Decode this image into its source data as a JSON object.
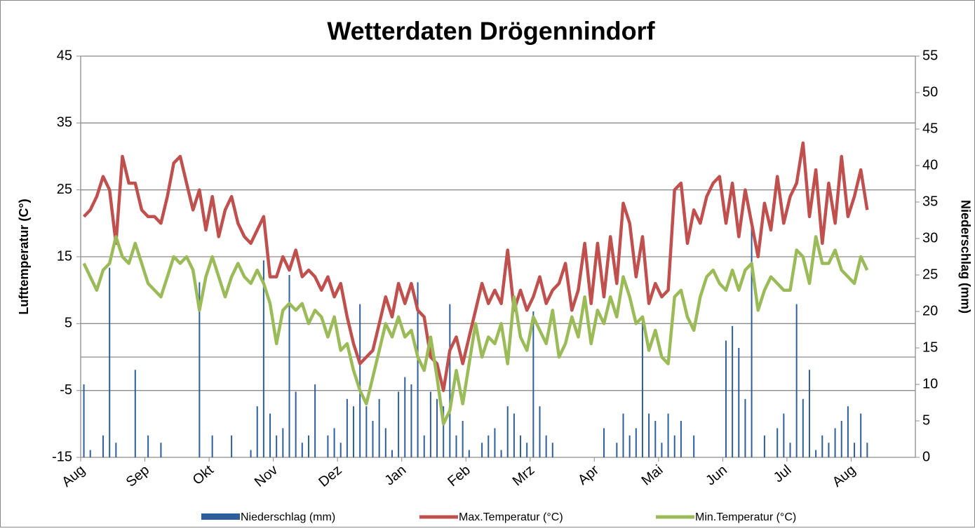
{
  "chart_data": {
    "type": "line",
    "title": "Wetterdaten Drögennindorf",
    "y_label": "Lufttemperatur (C°)",
    "y2_label": "Niederschlag (mm)",
    "categories": [
      "Aug",
      null,
      null,
      null,
      null,
      null,
      null,
      null,
      null,
      null,
      "Sep",
      null,
      null,
      null,
      null,
      null,
      null,
      null,
      null,
      null,
      "Okt",
      null,
      null,
      null,
      null,
      null,
      null,
      null,
      null,
      null,
      "Nov",
      null,
      null,
      null,
      null,
      null,
      null,
      null,
      null,
      null,
      "Dez",
      null,
      null,
      null,
      null,
      null,
      null,
      null,
      null,
      null,
      "Jan",
      null,
      null,
      null,
      null,
      null,
      null,
      null,
      null,
      null,
      "Feb",
      null,
      null,
      null,
      null,
      null,
      null,
      null,
      null,
      null,
      "Mrz",
      null,
      null,
      null,
      null,
      null,
      null,
      null,
      null,
      null,
      "Apr",
      null,
      null,
      null,
      null,
      null,
      null,
      null,
      null,
      null,
      "Mai",
      null,
      null,
      null,
      null,
      null,
      null,
      null,
      null,
      null,
      "Jun",
      null,
      null,
      null,
      null,
      null,
      null,
      null,
      null,
      null,
      "Jul",
      null,
      null,
      null,
      null,
      null,
      null,
      null,
      null,
      null,
      "Aug",
      null,
      null,
      null,
      null,
      null,
      null,
      null,
      null,
      null
    ],
    "series": [
      {
        "name": "Niederschlag (mm)",
        "type": "bar",
        "axis": "y2",
        "color": "#2e5f9c",
        "values": [
          10,
          1,
          0,
          3,
          26,
          2,
          0,
          0,
          12,
          0,
          3,
          0,
          2,
          0,
          0,
          0,
          0,
          0,
          24,
          0,
          3,
          0,
          0,
          3,
          0,
          0,
          1,
          7,
          27,
          6,
          3,
          4,
          25,
          9,
          2,
          3,
          10,
          0,
          3,
          4,
          2,
          8,
          7,
          21,
          7,
          5,
          8,
          4,
          1,
          9,
          11,
          10,
          24,
          3,
          9,
          8,
          7,
          21,
          3,
          5,
          1,
          0,
          2,
          3,
          4,
          1,
          7,
          6,
          3,
          2,
          20,
          7,
          3,
          2,
          0,
          0,
          0,
          0,
          0,
          0,
          0,
          4,
          0,
          2,
          6,
          3,
          4,
          19,
          6,
          5,
          2,
          6,
          3,
          5,
          0,
          3,
          0,
          0,
          0,
          0,
          16,
          18,
          15,
          8,
          32,
          0,
          3,
          0,
          4,
          6,
          2,
          21,
          8,
          12,
          1,
          3,
          2,
          4,
          5,
          7,
          2,
          6,
          2,
          null,
          null,
          null,
          null,
          null,
          null,
          null
        ]
      },
      {
        "name": "Max.Temperatur (°C)",
        "type": "line",
        "color": "#c0504d",
        "values": [
          21,
          22,
          24,
          27,
          25,
          17,
          30,
          26,
          26,
          22,
          21,
          21,
          20,
          24,
          29,
          30,
          26,
          22,
          25,
          19,
          24,
          18,
          22,
          24,
          20,
          18,
          17,
          19,
          21,
          12,
          12,
          15,
          13,
          16,
          12,
          13,
          12,
          10,
          12,
          9,
          11,
          6,
          2,
          -1,
          0,
          1,
          5,
          9,
          6,
          11,
          8,
          11,
          7,
          6,
          0,
          -1,
          -5,
          1,
          3,
          -1,
          3,
          7,
          11,
          8,
          10,
          8,
          16,
          7,
          10,
          7,
          9,
          12,
          8,
          10,
          11,
          14,
          7,
          10,
          17,
          8,
          17,
          9,
          18,
          11,
          23,
          20,
          12,
          18,
          8,
          11,
          9,
          10,
          25,
          26,
          17,
          22,
          20,
          24,
          26,
          27,
          20,
          26,
          18,
          25,
          20,
          15,
          23,
          19,
          27,
          20,
          24,
          26,
          32,
          21,
          28,
          17,
          26,
          20,
          30,
          21,
          24,
          28,
          22,
          null,
          null,
          null,
          null,
          null,
          null,
          null
        ]
      },
      {
        "name": "Min.Temperatur (°C)",
        "type": "line",
        "color": "#9bbb59",
        "values": [
          14,
          12,
          10,
          13,
          14,
          18,
          15,
          14,
          17,
          14,
          11,
          10,
          9,
          12,
          15,
          14,
          15,
          13,
          7,
          12,
          15,
          12,
          9,
          12,
          14,
          12,
          11,
          13,
          11,
          8,
          2,
          7,
          8,
          7,
          8,
          5,
          7,
          6,
          3,
          6,
          1,
          2,
          -2,
          -5,
          -7,
          -3,
          1,
          5,
          3,
          6,
          3,
          4,
          0,
          -2,
          3,
          -3,
          -10,
          -8,
          -2,
          -7,
          -1,
          5,
          0,
          3,
          2,
          5,
          -1,
          9,
          3,
          1,
          6,
          4,
          2,
          7,
          0,
          2,
          6,
          3,
          9,
          2,
          7,
          5,
          9,
          6,
          12,
          9,
          5,
          6,
          1,
          4,
          0,
          -1,
          9,
          10,
          6,
          4,
          9,
          12,
          13,
          11,
          10,
          13,
          10,
          13,
          14,
          7,
          10,
          12,
          11,
          10,
          10,
          16,
          15,
          11,
          18,
          14,
          14,
          16,
          13,
          12,
          11,
          15,
          13,
          null,
          null,
          null,
          null,
          null,
          null,
          null
        ]
      }
    ],
    "ylim": [
      -15,
      45
    ],
    "yticks": [
      -15,
      -5,
      5,
      15,
      25,
      35,
      45
    ],
    "y2lim": [
      0,
      55
    ],
    "y2ticks": [
      0,
      5,
      10,
      15,
      20,
      25,
      30,
      35,
      40,
      45,
      50,
      55
    ],
    "grid": true,
    "legend": "bottom"
  }
}
